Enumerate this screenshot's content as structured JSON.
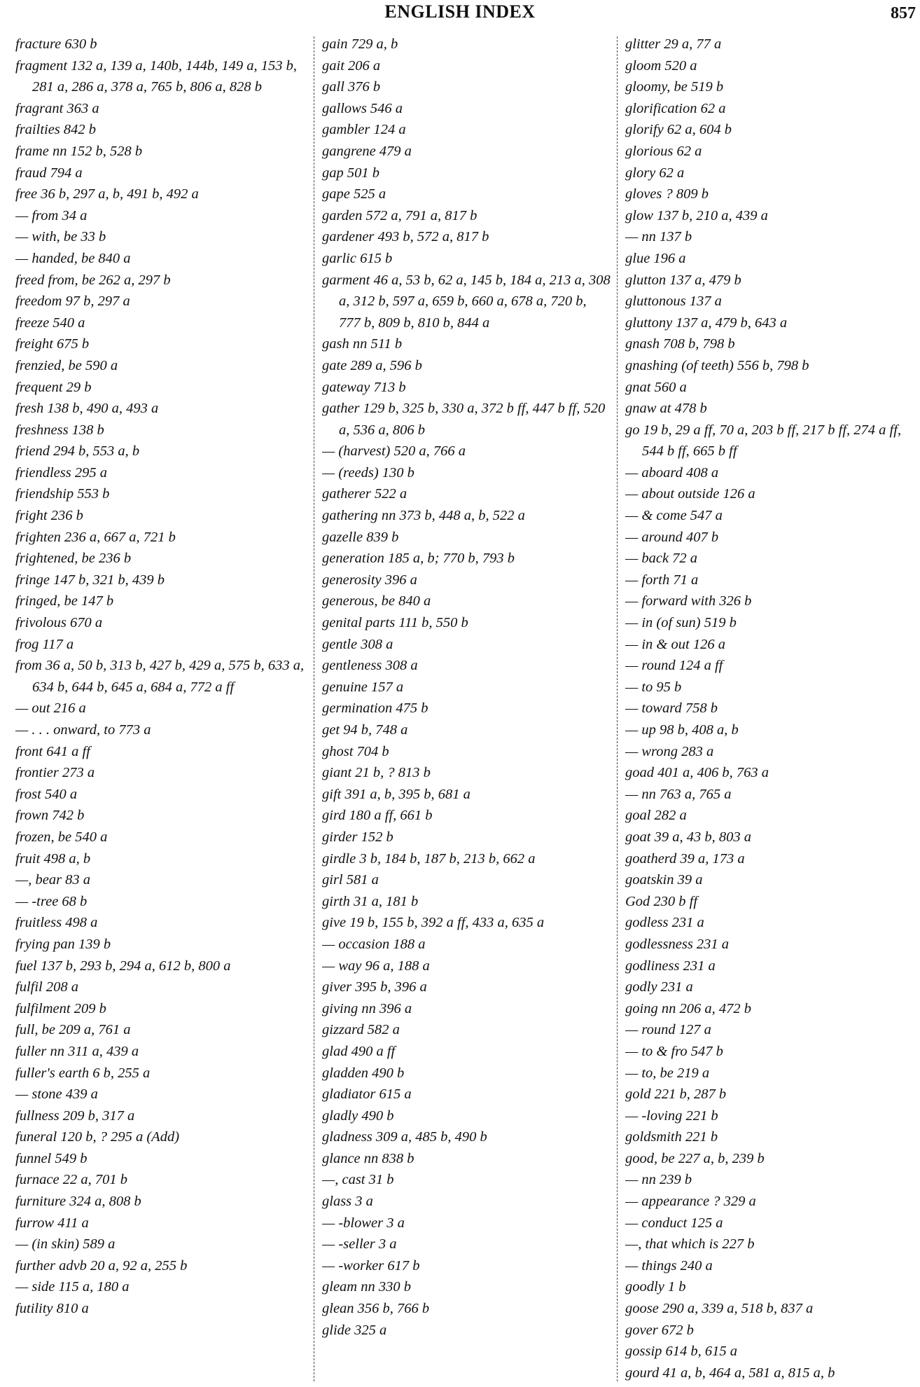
{
  "header": {
    "title": "ENGLISH INDEX",
    "page_number": "857"
  },
  "columns": [
    [
      "fracture 630 b",
      "fragment 132 a, 139 a, 140b, 144b, 149 a, 153 b, 281 a, 286 a, 378 a, 765 b, 806 a, 828 b",
      "fragrant 363 a",
      "frailties 842 b",
      "frame nn 152 b, 528 b",
      "fraud 794 a",
      "free 36 b, 297 a, b, 491 b, 492 a",
      "— from 34 a",
      "— with, be 33 b",
      "— handed, be 840 a",
      "freed from, be 262 a, 297 b",
      "freedom 97 b, 297 a",
      "freeze 540 a",
      "freight 675 b",
      "frenzied, be 590 a",
      "frequent 29 b",
      "fresh 138 b, 490 a, 493 a",
      "freshness 138 b",
      "friend 294 b, 553 a, b",
      "friendless 295 a",
      "friendship 553 b",
      "fright 236 b",
      "frighten 236 a, 667 a, 721 b",
      "frightened, be 236 b",
      "fringe 147 b, 321 b, 439 b",
      "fringed, be 147 b",
      "frivolous 670 a",
      "frog 117 a",
      "from 36 a, 50 b, 313 b, 427 b, 429 a, 575 b, 633 a, 634 b, 644 b, 645 a, 684 a, 772 a ff",
      "— out 216 a",
      "— . . . onward, to 773 a",
      "front 641 a ff",
      "frontier 273 a",
      "frost 540 a",
      "frown 742 b",
      "frozen, be 540 a",
      "fruit 498 a, b",
      "—, bear 83 a",
      "— -tree 68 b",
      "fruitless 498 a",
      "frying pan 139 b",
      "fuel 137 b, 293 b, 294 a, 612 b, 800 a",
      "fulfil 208 a",
      "fulfilment 209 b",
      "full, be 209 a, 761 a",
      "fuller nn 311 a, 439 a",
      "fuller's earth 6 b, 255 a",
      "— stone 439 a",
      "fullness 209 b, 317 a",
      "funeral 120 b, ? 295 a (Add)",
      "funnel 549 b",
      "furnace 22 a, 701 b",
      "furniture 324 a, 808 b",
      "furrow 411 a",
      "— (in skin) 589 a",
      "further advb 20 a, 92 a, 255 b",
      "— side 115 a, 180 a",
      "futility 810 a"
    ],
    [
      "gain 729 a, b",
      "gait 206 a",
      "gall 376 b",
      "gallows 546 a",
      "gambler 124 a",
      "gangrene 479 a",
      "gap 501 b",
      "gape 525 a",
      "garden 572 a, 791 a, 817 b",
      "gardener 493 b, 572 a, 817 b",
      "garlic 615 b",
      "garment 46 a, 53 b, 62 a, 145 b, 184 a, 213 a, 308 a, 312 b, 597 a, 659 b, 660 a, 678 a, 720 b, 777 b, 809 b, 810 b, 844 a",
      "gash nn 511 b",
      "gate 289 a, 596 b",
      "gateway 713 b",
      "gather 129 b, 325 b, 330 a, 372 b ff, 447 b ff, 520 a, 536 a, 806 b",
      "— (harvest) 520 a, 766 a",
      "— (reeds) 130 b",
      "gatherer 522 a",
      "gathering nn 373 b, 448 a, b, 522 a",
      "gazelle 839 b",
      "generation 185 a, b; 770 b, 793 b",
      "generosity 396 a",
      "generous, be 840 a",
      "genital parts 111 b, 550 b",
      "gentle 308 a",
      "gentleness 308 a",
      "genuine 157 a",
      "germination 475 b",
      "get 94 b, 748 a",
      "ghost 704 b",
      "giant 21 b, ? 813 b",
      "gift 391 a, b, 395 b, 681 a",
      "gird 180 a ff, 661 b",
      "girder 152 b",
      "girdle 3 b, 184 b, 187 b, 213 b, 662 a",
      "girl 581 a",
      "girth 31 a, 181 b",
      "give 19 b, 155 b, 392 a ff, 433 a, 635 a",
      "— occasion 188 a",
      "— way 96 a, 188 a",
      "giver 395 b, 396 a",
      "giving nn 396 a",
      "gizzard 582 a",
      "glad 490 a ff",
      "gladden 490 b",
      "gladiator 615 a",
      "gladly 490 b",
      "gladness 309 a, 485 b, 490 b",
      "glance nn 838 b",
      "—, cast 31 b",
      "glass 3 a",
      "— -blower 3 a",
      "— -seller 3 a",
      "— -worker 617 b",
      "gleam nn 330 b",
      "glean 356 b, 766 b",
      "glide 325 a"
    ],
    [
      "glitter 29 a, 77 a",
      "gloom 520 a",
      "gloomy, be 519 b",
      "glorification 62 a",
      "glorify 62 a, 604 b",
      "glorious 62 a",
      "glory 62 a",
      "gloves ? 809 b",
      "glow 137 b, 210 a, 439 a",
      "— nn 137 b",
      "glue 196 a",
      "glutton 137 a, 479 b",
      "gluttonous 137 a",
      "gluttony 137 a, 479 b, 643 a",
      "gnash 708 b, 798 b",
      "gnashing (of teeth) 556 b, 798 b",
      "gnat 560 a",
      "gnaw at 478 b",
      "go 19 b, 29 a ff, 70 a, 203 b ff, 217 b ff, 274 a ff, 544 b ff, 665 b ff",
      "— aboard 408 a",
      "— about outside 126 a",
      "— & come 547 a",
      "— around 407 b",
      "— back 72 a",
      "— forth 71 a",
      "— forward with 326 b",
      "— in (of sun) 519 b",
      "— in & out 126 a",
      "— round 124 a ff",
      "— to 95 b",
      "— toward 758 b",
      "— up 98 b, 408 a, b",
      "— wrong 283 a",
      "goad 401 a, 406 b, 763 a",
      "— nn 763 a, 765 a",
      "goal 282 a",
      "goat 39 a, 43 b, 803 a",
      "goatherd 39 a, 173 a",
      "goatskin 39 a",
      "God 230 b ff",
      "godless 231 a",
      "godlessness 231 a",
      "godliness 231 a",
      "godly 231 a",
      "going nn 206 a, 472 b",
      "— round 127 a",
      "— to & fro 547 b",
      "— to, be 219 a",
      "gold 221 b, 287 b",
      "— -loving 221 b",
      "goldsmith 221 b",
      "good, be 227 a, b, 239 b",
      "— nn 239 b",
      "— appearance ? 329 a",
      "— conduct 125 a",
      "—, that which is 227 b",
      "— things 240 a",
      "goodly 1 b",
      "goose 290 a, 339 a, 518 b, 837 a",
      "gover 672 b",
      "gossip 614 b, 615 a",
      "gourd 41 a, b, 464 a, 581 a, 815 a, b"
    ]
  ]
}
